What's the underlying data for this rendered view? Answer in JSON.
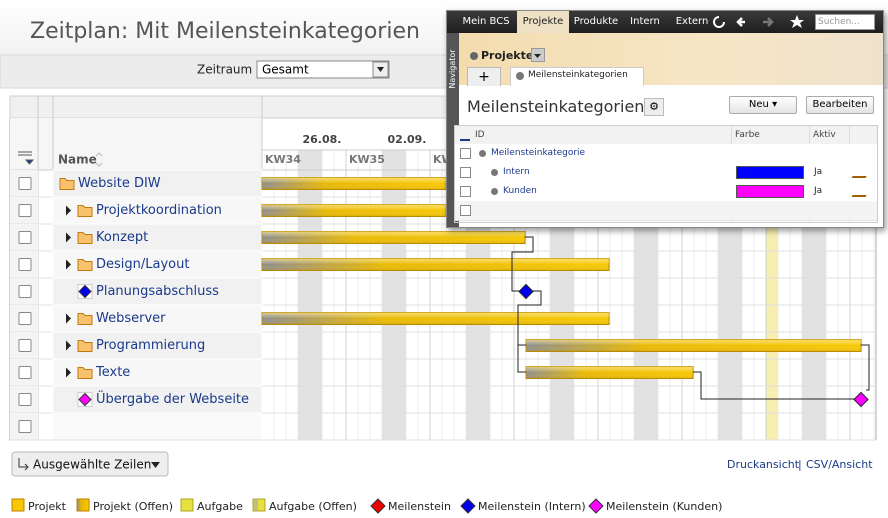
{
  "title": "Zeitplan: Mit Meilensteinkategorien",
  "filter": {
    "label": "Zeitraum",
    "value": "Gesamt"
  },
  "gantt": {
    "name_header": "Name",
    "dates": [
      "26.08.",
      "02.09."
    ],
    "weeks": [
      "KW34",
      "KW35",
      "KW"
    ],
    "rows": [
      "Website DIW",
      "Projektkoordination",
      "Konzept",
      "Design/Layout",
      "Planungsabschluss",
      "Webserver",
      "Programmierung",
      "Texte",
      "Übergabe der Webseite"
    ]
  },
  "actions": {
    "selected_rows": "Ausgewählte Zeilen",
    "print_view": "Druckansicht",
    "separator": "|",
    "csv_view": "CSV/Ansicht"
  },
  "legend": [
    "Projekt",
    "Projekt (Offen)",
    "Aufgabe",
    "Aufgabe (Offen)",
    "Meilenstein",
    "Meilenstein (Intern)",
    "Meilenstein (Kunden)"
  ],
  "popup": {
    "nav_tabs": [
      "Mein BCS",
      "Projekte",
      "Produkte",
      "Intern",
      "Extern"
    ],
    "search_placeholder": "Suchen...",
    "navigator": "Navigator",
    "section": "Projekte",
    "add": "+",
    "tab": "Meilensteinkategorien",
    "heading": "Meilensteinkategorien",
    "buttons": [
      "Neu",
      "Bearbeiten"
    ],
    "table": {
      "columns": [
        "ID",
        "Farbe",
        "Aktiv"
      ],
      "rows": [
        {
          "id": "Meilensteinkategorie"
        },
        {
          "id": "Intern",
          "color": "#0000ff",
          "active": "Ja"
        },
        {
          "id": "Kunden",
          "color": "#ff00ff",
          "active": "Ja"
        }
      ]
    }
  }
}
